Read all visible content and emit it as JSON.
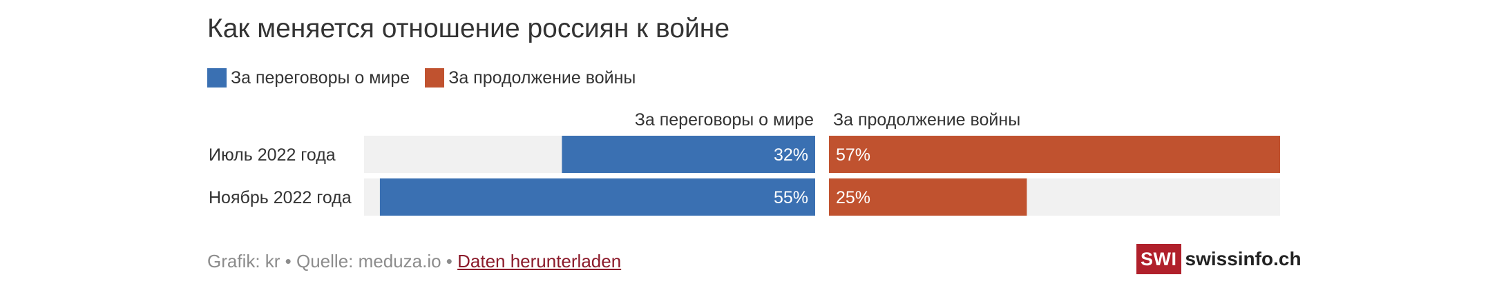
{
  "chart_data": {
    "type": "bar",
    "title": "Как меняется отношение россиян к войне",
    "legend_position": "top-left",
    "categories": [
      "Июль 2022 года",
      "Ноябрь 2022 года"
    ],
    "series": [
      {
        "name": "За переговоры о мире",
        "values": [
          32,
          55
        ],
        "labels": [
          "32%",
          "55%"
        ],
        "color": "#3a70b2",
        "direction": "left"
      },
      {
        "name": "За продолжение войны",
        "values": [
          57,
          25
        ],
        "labels": [
          "57%",
          "25%"
        ],
        "color": "#c0522f",
        "direction": "right"
      }
    ],
    "value_range": [
      0,
      57
    ],
    "background_color": "#f1f1f1"
  },
  "footer": {
    "credit": "Grafik: kr • Quelle: meduza.io • ",
    "link_label": "Daten herunterladen"
  },
  "logo": {
    "box": "SWI",
    "text": "swissinfo.ch"
  }
}
